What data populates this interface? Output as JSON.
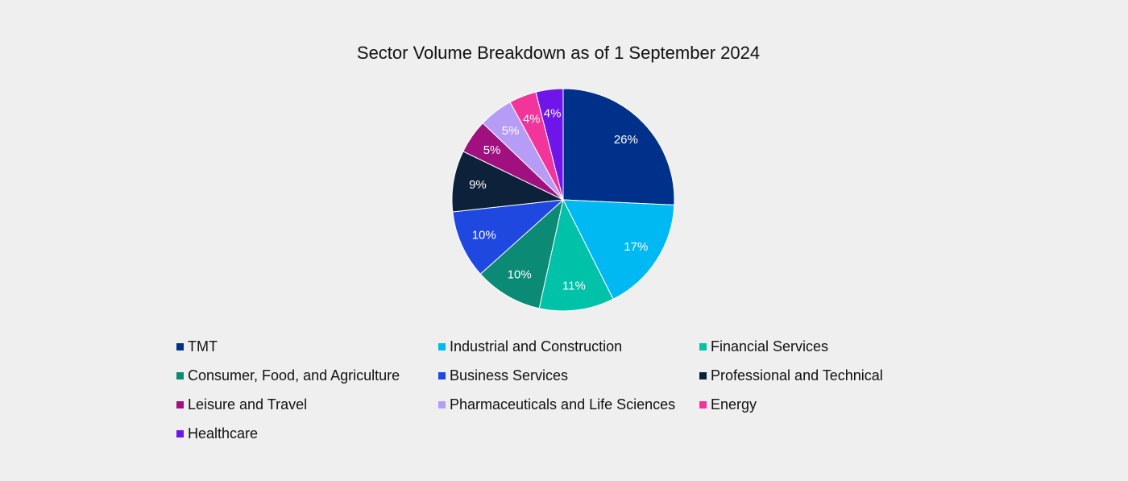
{
  "chart_data": {
    "type": "pie",
    "title": "Sector Volume Breakdown as of 1 September 2024",
    "slices": [
      {
        "label": "TMT",
        "value": 26,
        "display": "26%",
        "color": "#00318a"
      },
      {
        "label": "Industrial and Construction",
        "value": 17,
        "display": "17%",
        "color": "#00b9f2"
      },
      {
        "label": "Financial Services",
        "value": 11,
        "display": "11%",
        "color": "#00c2a8"
      },
      {
        "label": "Consumer, Food, and Agriculture",
        "value": 10,
        "display": "10%",
        "color": "#0b8a76"
      },
      {
        "label": "Business Services",
        "value": 10,
        "display": "10%",
        "color": "#1f48e0"
      },
      {
        "label": "Professional and Technical",
        "value": 9,
        "display": "9%",
        "color": "#0e213a"
      },
      {
        "label": "Leisure and Travel",
        "value": 5,
        "display": "5%",
        "color": "#a0117f"
      },
      {
        "label": "Pharmaceuticals and Life Sciences",
        "value": 5,
        "display": "5%",
        "color": "#b79cf7"
      },
      {
        "label": "Energy",
        "value": 4,
        "display": "4%",
        "color": "#f2359a"
      },
      {
        "label": "Healthcare",
        "value": 4,
        "display": "4%",
        "color": "#7015ea"
      }
    ],
    "legend_position": "bottom",
    "label_color": "#ffffff",
    "border_color": "#ffffff"
  }
}
